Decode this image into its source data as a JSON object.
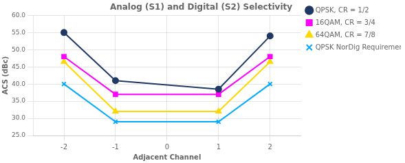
{
  "chart_data": {
    "type": "line",
    "title": "Analog (S1) and Digital (S2) Selectivity",
    "xlabel": "Adjacent Channel",
    "ylabel": "ACS (dBc)",
    "x": [
      -2,
      -1,
      1,
      2
    ],
    "series": [
      {
        "name": "QPSK, CR = 1/2",
        "color": "#1F3864",
        "marker": "circle",
        "values": [
          55.0,
          41.0,
          38.5,
          54.0
        ]
      },
      {
        "name": "16QAM, CR = 3/4",
        "color": "#FF00FF",
        "marker": "square",
        "values": [
          48.0,
          37.0,
          37.0,
          48.0
        ]
      },
      {
        "name": "64QAM, CR = 7/8",
        "color": "#FFD700",
        "marker": "triangle",
        "values": [
          46.5,
          32.0,
          32.0,
          46.5
        ]
      },
      {
        "name": "QPSK NorDig Requirement",
        "color": "#00AAFF",
        "marker": "x",
        "values": [
          40.0,
          29.0,
          29.0,
          40.0
        ]
      }
    ],
    "xlim": [
      -2.6,
      2.6
    ],
    "xticks": [
      -2,
      -1,
      0,
      1,
      2
    ],
    "ylim": [
      25.0,
      60.0
    ],
    "yticks": [
      {
        "value": 25,
        "label": "25.0"
      },
      {
        "value": 30,
        "label": "30.0"
      },
      {
        "value": 35,
        "label": "35.0"
      },
      {
        "value": 40,
        "label": "40.0"
      },
      {
        "value": 45,
        "label": "45.0"
      },
      {
        "value": 50,
        "label": "50.0"
      },
      {
        "value": 55,
        "label": "55.0"
      },
      {
        "value": 60,
        "label": "60.0"
      }
    ],
    "grid": true,
    "legend": "right"
  }
}
